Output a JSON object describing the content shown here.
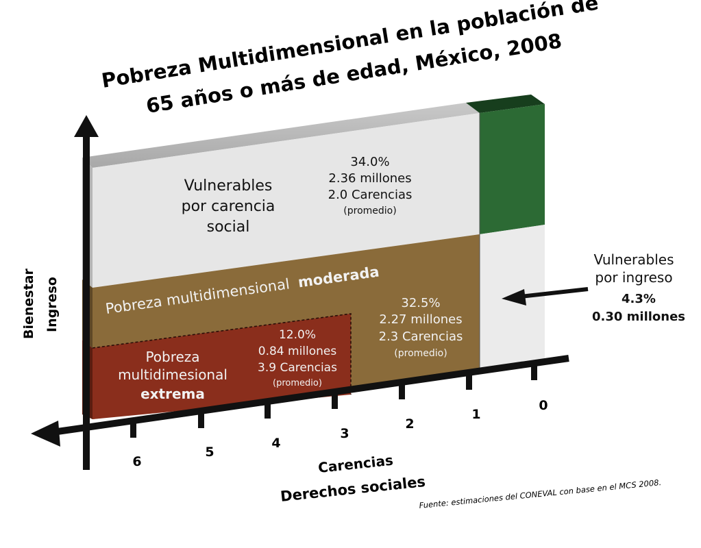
{
  "title": {
    "line1": "Pobreza Multidimensional en la población de",
    "line2": "65 años o más de edad, México, 2008"
  },
  "y_axis": {
    "label1": "Bienestar",
    "label2": "Ingreso"
  },
  "x_axis": {
    "label1": "Carencias",
    "label2": "Derechos sociales",
    "ticks": [
      "6",
      "5",
      "4",
      "3",
      "2",
      "1",
      "0"
    ]
  },
  "regions": {
    "vulnerable_social": {
      "name_lines": [
        "Vulnerables",
        "por carencia",
        "social"
      ],
      "percent": "34.0%",
      "millions": "2.36 millones",
      "carencias": "2.0 Carencias",
      "note": "(promedio)"
    },
    "moderate": {
      "name_prefix": "Pobreza  multidimensional",
      "name_bold": "moderada",
      "percent": "32.5%",
      "millions": "2.27 millones",
      "carencias": "2.3 Carencias",
      "note": "(promedio)"
    },
    "extreme": {
      "name_lines": [
        "Pobreza",
        "multidimesional"
      ],
      "name_bold": "extrema",
      "percent": "12.0%",
      "millions": "0.84 millones",
      "carencias": "3.9 Carencias",
      "note": "(promedio)"
    },
    "vulnerable_income": {
      "name_lines": [
        "Vulnerables",
        "por ingreso"
      ],
      "percent": "4.3%",
      "millions": "0.30 millones"
    }
  },
  "source": "Fuente: estimaciones del CONEVAL con base en el MCS 2008.",
  "colors": {
    "vulnerable_social": "#e6e6e6",
    "moderate": "#8a6b3a",
    "extreme": "#8a2e1c",
    "not_poor": "#2c6a34",
    "vulnerable_income": "#ebebeb",
    "axis": "#111111"
  }
}
